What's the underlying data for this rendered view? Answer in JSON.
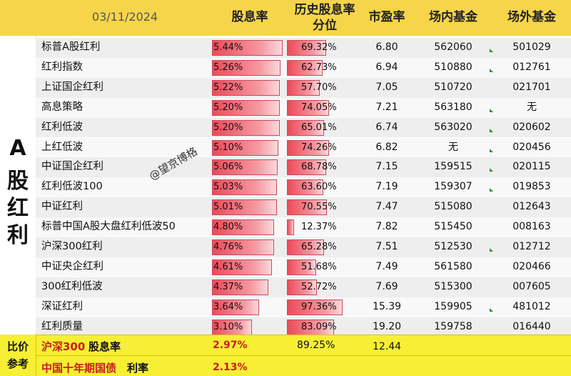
{
  "header": {
    "date": "03/11/2024",
    "col_yield": "股息率",
    "col_hist_line1": "历史股息率",
    "col_hist_line2": "分位",
    "col_pe": "市盈率",
    "col_onfund": "场内基金",
    "col_offfund": "场外基金"
  },
  "side_label": [
    "A",
    "股",
    "红",
    "利"
  ],
  "watermark": "@望京博格",
  "rows": [
    {
      "name": "标普A股红利",
      "yield": "5.44%",
      "yield_value": 5.44,
      "hist": "69.32%",
      "hist_value": 69.32,
      "pe": "6.80",
      "on": "562060",
      "off": "501029"
    },
    {
      "name": "红利指数",
      "yield": "5.26%",
      "yield_value": 5.26,
      "hist": "62.73%",
      "hist_value": 62.73,
      "pe": "6.94",
      "on": "510880",
      "off": "012761"
    },
    {
      "name": "上证国企红利",
      "yield": "5.22%",
      "yield_value": 5.22,
      "hist": "57.70%",
      "hist_value": 57.7,
      "pe": "7.05",
      "on": "510720",
      "off": "021701"
    },
    {
      "name": "高息策略",
      "yield": "5.20%",
      "yield_value": 5.2,
      "hist": "74.05%",
      "hist_value": 74.05,
      "pe": "7.21",
      "on": "563180",
      "off": "无"
    },
    {
      "name": "红利低波",
      "yield": "5.20%",
      "yield_value": 5.2,
      "hist": "65.01%",
      "hist_value": 65.01,
      "pe": "6.74",
      "on": "563020",
      "off": "020602"
    },
    {
      "name": "上红低波",
      "yield": "5.10%",
      "yield_value": 5.1,
      "hist": "74.26%",
      "hist_value": 74.26,
      "pe": "6.82",
      "on": "无",
      "off": "020456"
    },
    {
      "name": "中证国企红利",
      "yield": "5.06%",
      "yield_value": 5.06,
      "hist": "68.78%",
      "hist_value": 68.78,
      "pe": "7.15",
      "on": "159515",
      "off": "020115"
    },
    {
      "name": "红利低波100",
      "yield": "5.03%",
      "yield_value": 5.03,
      "hist": "63.60%",
      "hist_value": 63.6,
      "pe": "7.19",
      "on": "159307",
      "off": "019853"
    },
    {
      "name": "中证红利",
      "yield": "5.01%",
      "yield_value": 5.01,
      "hist": "70.55%",
      "hist_value": 70.55,
      "pe": "7.47",
      "on": "515080",
      "off": "012643"
    },
    {
      "name": "标普中国A股大盘红利低波50",
      "yield": "4.80%",
      "yield_value": 4.8,
      "hist": "12.37%",
      "hist_value": 12.37,
      "pe": "7.82",
      "on": "515450",
      "off": "008163"
    },
    {
      "name": "沪深300红利",
      "yield": "4.76%",
      "yield_value": 4.76,
      "hist": "65.28%",
      "hist_value": 65.28,
      "pe": "7.51",
      "on": "512530",
      "off": "012712"
    },
    {
      "name": "中证央企红利",
      "yield": "4.61%",
      "yield_value": 4.61,
      "hist": "51.68%",
      "hist_value": 51.68,
      "pe": "7.49",
      "on": "561580",
      "off": "020466"
    },
    {
      "name": "300红利低波",
      "yield": "4.37%",
      "yield_value": 4.37,
      "hist": "52.72%",
      "hist_value": 52.72,
      "pe": "7.69",
      "on": "515300",
      "off": "007605"
    },
    {
      "name": "深证红利",
      "yield": "3.64%",
      "yield_value": 3.64,
      "hist": "97.36%",
      "hist_value": 97.36,
      "pe": "15.39",
      "on": "159905",
      "off": "481012"
    },
    {
      "name": "红利质量",
      "yield": "3.10%",
      "yield_value": 3.1,
      "hist": "83.09%",
      "hist_value": 83.09,
      "pe": "19.20",
      "on": "159758",
      "off": "016440"
    }
  ],
  "footer": {
    "label_line1": "比价",
    "label_line2": "参考",
    "row1_name": "沪深300",
    "row1_suffix": "股息率",
    "row1_yield": "2.97%",
    "row1_hist": "89.25%",
    "row1_pe": "12.44",
    "row2_name": "中国十年期国债",
    "row2_suffix": "利率",
    "row2_yield": "2.13%"
  },
  "colors": {
    "header_bg": "#f6d54a",
    "footer_bg": "#f6ef33",
    "bar_fill": "#ec4a58",
    "footer_text": "#c81e1e"
  }
}
